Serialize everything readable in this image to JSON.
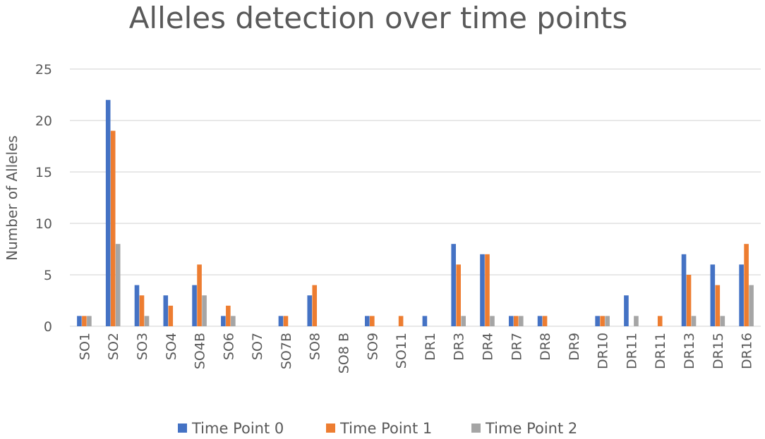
{
  "chart_data": {
    "type": "bar",
    "title": "Alleles detection over time points",
    "xlabel": "",
    "ylabel": "Number of Alleles",
    "ylim": [
      0,
      25
    ],
    "yticks": [
      0,
      5,
      10,
      15,
      20,
      25
    ],
    "grid": true,
    "legend_position": "bottom",
    "categories": [
      "SO1",
      "SO2",
      "SO3",
      "SO4",
      "SO4B",
      "SO6",
      "SO7",
      "SO7B",
      "SO8",
      "SO8 B",
      "SO9",
      "SO11",
      "DR1",
      "DR3",
      "DR4",
      "DR7",
      "DR8",
      "DR9",
      "DR10",
      "DR11",
      "DR11",
      "DR13",
      "DR15",
      "DR16"
    ],
    "series": [
      {
        "name": "Time Point 0",
        "color": "#4472c4",
        "values": [
          1,
          22,
          4,
          3,
          4,
          1,
          0,
          1,
          3,
          0,
          1,
          0,
          1,
          8,
          7,
          1,
          1,
          0,
          1,
          3,
          0,
          7,
          6,
          6
        ]
      },
      {
        "name": "Time Point 1",
        "color": "#ed7d31",
        "values": [
          1,
          19,
          3,
          2,
          6,
          2,
          0,
          1,
          4,
          0,
          1,
          1,
          0,
          6,
          7,
          1,
          1,
          0,
          1,
          0,
          1,
          5,
          4,
          8
        ]
      },
      {
        "name": "Time Point 2",
        "color": "#a5a5a5",
        "values": [
          1,
          8,
          1,
          0,
          3,
          1,
          0,
          0,
          0,
          0,
          0,
          0,
          0,
          1,
          1,
          1,
          0,
          0,
          1,
          1,
          0,
          1,
          1,
          4
        ]
      }
    ]
  }
}
